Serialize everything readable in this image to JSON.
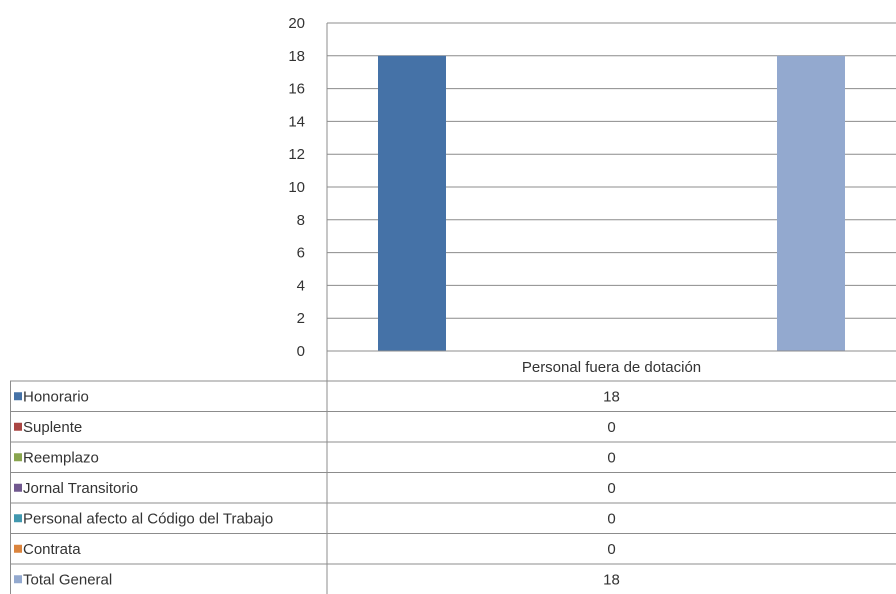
{
  "chart_data": {
    "type": "bar",
    "categories": [
      "Personal fuera de dotación"
    ],
    "ylim": [
      0,
      20
    ],
    "y_ticks": [
      0,
      2,
      4,
      6,
      8,
      10,
      12,
      14,
      16,
      18,
      20
    ],
    "grid": true,
    "legend": "data-table",
    "series": [
      {
        "name": "Honorario",
        "values": [
          18
        ],
        "color": "#4572A7"
      },
      {
        "name": "Suplente",
        "values": [
          0
        ],
        "color": "#AA4643"
      },
      {
        "name": "Reemplazo",
        "values": [
          0
        ],
        "color": "#89A54E"
      },
      {
        "name": "Jornal Transitorio",
        "values": [
          0
        ],
        "color": "#71588F"
      },
      {
        "name": "Personal afecto al Código del Trabajo",
        "values": [
          0
        ],
        "color": "#4198AF"
      },
      {
        "name": "Contrata",
        "values": [
          0
        ],
        "color": "#DB843D"
      },
      {
        "name": "Total General",
        "values": [
          18
        ],
        "color": "#93A9CF"
      }
    ]
  }
}
